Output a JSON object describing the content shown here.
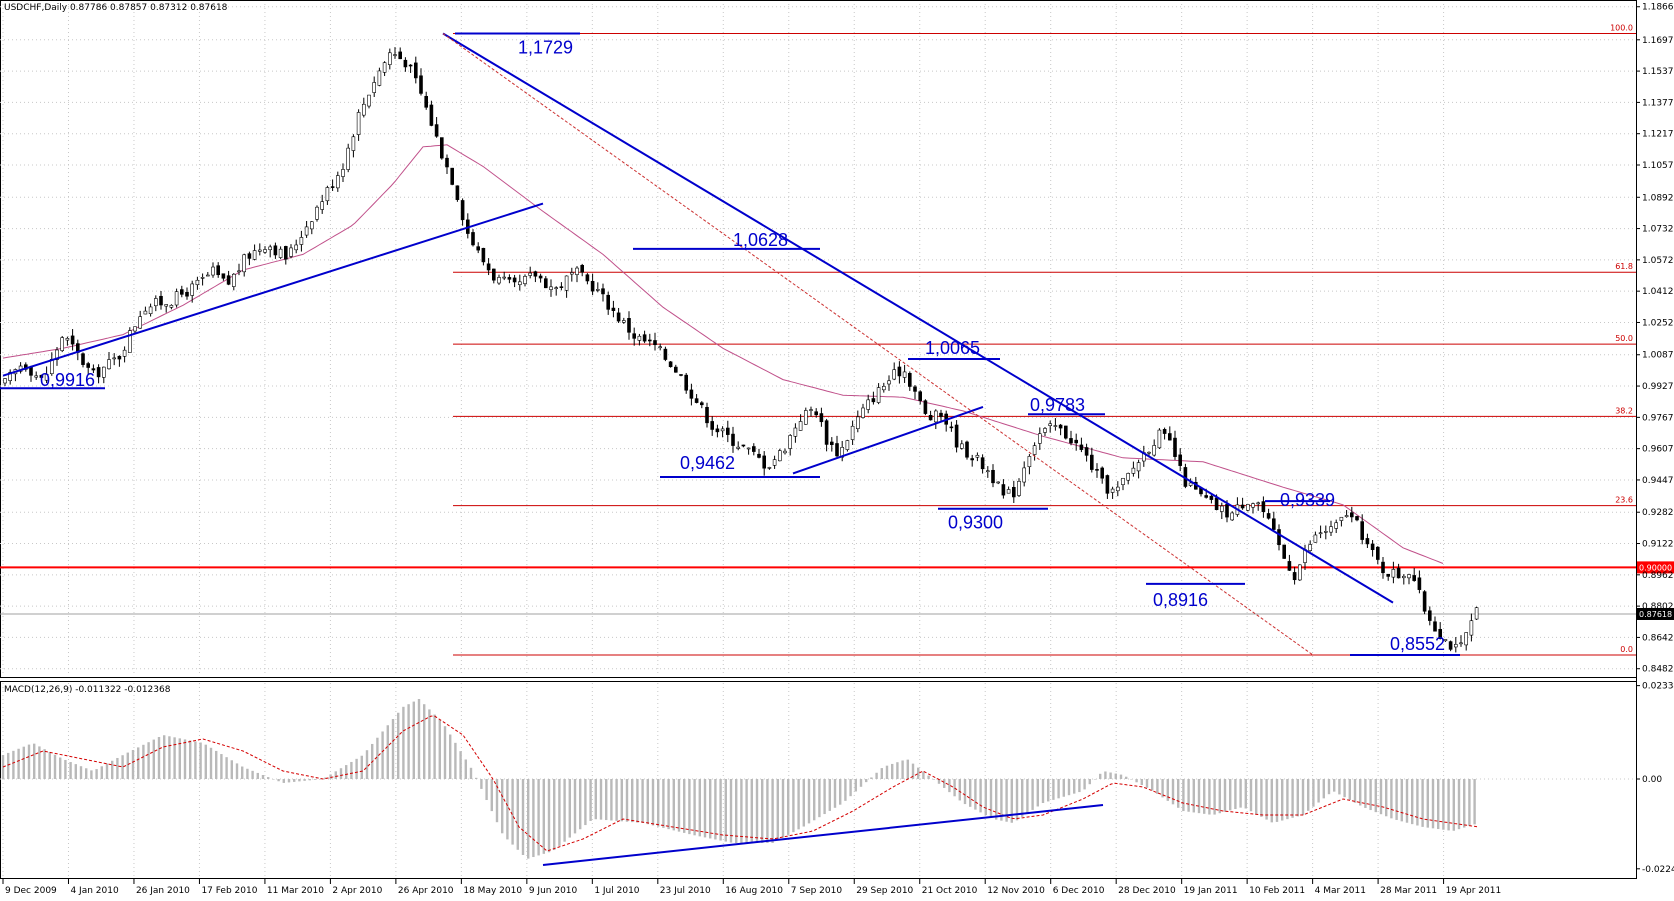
{
  "chart_data": [
    {
      "type": "candlestick",
      "symbol_header": "USDCHF,Daily  0.87786 0.87857 0.87312 0.87618",
      "yaxis_ticks": [
        "1.18660",
        "1.16970",
        "1.15370",
        "1.13770",
        "1.12170",
        "1.10570",
        "1.08920",
        "1.07320",
        "1.05720",
        "1.04120",
        "1.02520",
        "1.00870",
        "0.99270",
        "0.97670",
        "0.96070",
        "0.94470",
        "0.92820",
        "0.91220",
        "0.89620",
        "0.88020",
        "0.86420",
        "0.84820"
      ],
      "ylim": [
        0.8455,
        1.188
      ],
      "xaxis_ticks": [
        "9 Dec 2009",
        "4 Jan 2010",
        "26 Jan 2010",
        "17 Feb 2010",
        "11 Mar 2010",
        "2 Apr 2010",
        "26 Apr 2010",
        "18 May 2010",
        "9 Jun 2010",
        "1 Jul 2010",
        "23 Jul 2010",
        "16 Aug 2010",
        "7 Sep 2010",
        "29 Sep 2010",
        "21 Oct 2010",
        "12 Nov 2010",
        "6 Dec 2010",
        "28 Dec 2010",
        "19 Jan 2011",
        "10 Feb 2011",
        "4 Mar 2011",
        "28 Mar 2011",
        "19 Apr 2011"
      ],
      "current_price": {
        "label": "0.87618",
        "value": 0.87618
      },
      "price_path": [
        [
          0,
          0.993
        ],
        [
          10,
          1.005
        ],
        [
          20,
          0.995
        ],
        [
          30,
          1.019
        ],
        [
          45,
          0.998
        ],
        [
          58,
          1.008
        ],
        [
          70,
          1.033
        ],
        [
          85,
          1.037
        ],
        [
          95,
          1.043
        ],
        [
          105,
          1.051
        ],
        [
          112,
          1.044
        ],
        [
          122,
          1.059
        ],
        [
          132,
          1.066
        ],
        [
          142,
          1.058
        ],
        [
          150,
          1.072
        ],
        [
          160,
          1.089
        ],
        [
          170,
          1.106
        ],
        [
          178,
          1.132
        ],
        [
          186,
          1.15
        ],
        [
          194,
          1.164
        ],
        [
          202,
          1.158
        ],
        [
          208,
          1.145
        ],
        [
          214,
          1.128
        ],
        [
          220,
          1.11
        ],
        [
          226,
          1.095
        ],
        [
          232,
          1.072
        ],
        [
          238,
          1.06
        ],
        [
          246,
          1.048
        ],
        [
          256,
          1.043
        ],
        [
          266,
          1.05
        ],
        [
          276,
          1.042
        ],
        [
          286,
          1.051
        ],
        [
          296,
          1.043
        ],
        [
          306,
          1.03
        ],
        [
          316,
          1.018
        ],
        [
          326,
          1.013
        ],
        [
          336,
          1.002
        ],
        [
          345,
          0.988
        ],
        [
          355,
          0.972
        ],
        [
          365,
          0.965
        ],
        [
          375,
          0.958
        ],
        [
          382,
          0.952
        ],
        [
          390,
          0.96
        ],
        [
          398,
          0.976
        ],
        [
          406,
          0.982
        ],
        [
          412,
          0.965
        ],
        [
          418,
          0.958
        ],
        [
          426,
          0.974
        ],
        [
          434,
          0.986
        ],
        [
          442,
          0.995
        ],
        [
          450,
          1.002
        ],
        [
          456,
          0.99
        ],
        [
          462,
          0.976
        ],
        [
          470,
          0.978
        ],
        [
          478,
          0.962
        ],
        [
          486,
          0.956
        ],
        [
          494,
          0.948
        ],
        [
          500,
          0.936
        ],
        [
          506,
          0.939
        ],
        [
          512,
          0.957
        ],
        [
          518,
          0.968
        ],
        [
          526,
          0.972
        ],
        [
          534,
          0.966
        ],
        [
          542,
          0.956
        ],
        [
          550,
          0.942
        ],
        [
          556,
          0.938
        ],
        [
          562,
          0.946
        ],
        [
          570,
          0.958
        ],
        [
          578,
          0.968
        ],
        [
          584,
          0.963
        ],
        [
          590,
          0.945
        ],
        [
          598,
          0.937
        ],
        [
          606,
          0.931
        ],
        [
          614,
          0.927
        ],
        [
          622,
          0.935
        ],
        [
          628,
          0.933
        ],
        [
          634,
          0.92
        ],
        [
          640,
          0.906
        ],
        [
          646,
          0.896
        ],
        [
          652,
          0.91
        ],
        [
          658,
          0.918
        ],
        [
          666,
          0.92
        ],
        [
          672,
          0.928
        ],
        [
          678,
          0.92
        ],
        [
          684,
          0.908
        ],
        [
          690,
          0.899
        ],
        [
          698,
          0.896
        ],
        [
          704,
          0.899
        ],
        [
          710,
          0.88
        ],
        [
          716,
          0.87
        ],
        [
          722,
          0.862
        ],
        [
          728,
          0.857
        ],
        [
          732,
          0.866
        ],
        [
          736,
          0.877
        ],
        [
          738,
          0.8762
        ]
      ],
      "moving_average_path": [
        [
          0,
          1.007
        ],
        [
          30,
          1.012
        ],
        [
          60,
          1.019
        ],
        [
          90,
          1.034
        ],
        [
          120,
          1.052
        ],
        [
          150,
          1.06
        ],
        [
          175,
          1.075
        ],
        [
          195,
          1.096
        ],
        [
          210,
          1.115
        ],
        [
          222,
          1.116
        ],
        [
          240,
          1.105
        ],
        [
          270,
          1.082
        ],
        [
          300,
          1.06
        ],
        [
          330,
          1.033
        ],
        [
          360,
          1.012
        ],
        [
          390,
          0.996
        ],
        [
          420,
          0.988
        ],
        [
          450,
          0.987
        ],
        [
          480,
          0.98
        ],
        [
          520,
          0.967
        ],
        [
          560,
          0.956
        ],
        [
          600,
          0.954
        ],
        [
          640,
          0.941
        ],
        [
          670,
          0.932
        ],
        [
          700,
          0.91
        ],
        [
          720,
          0.902
        ]
      ],
      "fibonacci_levels": [
        {
          "label": "100.0",
          "value": 1.1729
        },
        {
          "label": "61.8",
          "value": 1.0509
        },
        {
          "label": "50.0",
          "value": 1.0141
        },
        {
          "label": "38.2",
          "value": 0.9772
        },
        {
          "label": "23.6",
          "value": 0.9316
        },
        {
          "label": "0.0",
          "value": 0.8552
        }
      ],
      "fib_color": "#cc0000",
      "key_level": {
        "label": "0.90000",
        "value": 0.9,
        "color": "#ff0000"
      },
      "annotations": [
        {
          "label": "1,1729",
          "value": 1.1729
        },
        {
          "label": "1,0628",
          "value": 1.0628
        },
        {
          "label": "1,0065",
          "value": 1.0065
        },
        {
          "label": "0,9916",
          "value": 0.9916
        },
        {
          "label": "0,9783",
          "value": 0.9783
        },
        {
          "label": "0,9462",
          "value": 0.9462
        },
        {
          "label": "0,9300",
          "value": 0.93
        },
        {
          "label": "0,9339",
          "value": 0.9339
        },
        {
          "label": "0,8916",
          "value": 0.8916
        },
        {
          "label": "0,8552",
          "value": 0.8552
        }
      ],
      "trendlines": [
        {
          "name": "downtrend",
          "from": [
            220,
            1.1729
          ],
          "to": [
            695,
            0.882
          ]
        },
        {
          "name": "uptrend-2010",
          "from": [
            0,
            0.998
          ],
          "to": [
            270,
            1.086
          ]
        },
        {
          "name": "uptrend-autumn",
          "from": [
            395,
            0.948
          ],
          "to": [
            490,
            0.982
          ]
        }
      ],
      "channel_line": {
        "from": [
          220,
          1.1729
        ],
        "to": [
          655,
          0.8552
        ]
      },
      "line_color": "#0000cc",
      "ma_color": "#c0508a"
    },
    {
      "type": "histogram",
      "title": "MACD(12,26,9) -0.011322 -0.012368",
      "yaxis_ticks": [
        "0.023345",
        "0.00",
        "-0.02245"
      ],
      "ylim": [
        -0.0245,
        0.024
      ],
      "bar_color": "#b9b9b9",
      "signal_color": "#d40000",
      "macd_path": [
        [
          0,
          0.006
        ],
        [
          15,
          0.009
        ],
        [
          30,
          0.005
        ],
        [
          45,
          0.002
        ],
        [
          60,
          0.006
        ],
        [
          80,
          0.011
        ],
        [
          100,
          0.009
        ],
        [
          120,
          0.003
        ],
        [
          140,
          -0.001
        ],
        [
          160,
          0.0
        ],
        [
          180,
          0.006
        ],
        [
          200,
          0.018
        ],
        [
          208,
          0.02
        ],
        [
          220,
          0.014
        ],
        [
          235,
          0.002
        ],
        [
          250,
          -0.014
        ],
        [
          262,
          -0.02
        ],
        [
          275,
          -0.018
        ],
        [
          295,
          -0.01
        ],
        [
          320,
          -0.011
        ],
        [
          345,
          -0.014
        ],
        [
          365,
          -0.016
        ],
        [
          385,
          -0.016
        ],
        [
          400,
          -0.012
        ],
        [
          420,
          -0.006
        ],
        [
          440,
          0.003
        ],
        [
          452,
          0.005
        ],
        [
          465,
          0.0
        ],
        [
          480,
          -0.006
        ],
        [
          495,
          -0.01
        ],
        [
          505,
          -0.011
        ],
        [
          520,
          -0.006
        ],
        [
          540,
          -0.003
        ],
        [
          550,
          0.002
        ],
        [
          560,
          0.001
        ],
        [
          575,
          -0.003
        ],
        [
          590,
          -0.008
        ],
        [
          605,
          -0.009
        ],
        [
          620,
          -0.007
        ],
        [
          635,
          -0.011
        ],
        [
          650,
          -0.009
        ],
        [
          665,
          -0.003
        ],
        [
          680,
          -0.007
        ],
        [
          695,
          -0.01
        ],
        [
          710,
          -0.012
        ],
        [
          725,
          -0.013
        ],
        [
          738,
          -0.011
        ]
      ],
      "signal_path": [
        [
          0,
          0.003
        ],
        [
          20,
          0.007
        ],
        [
          40,
          0.005
        ],
        [
          60,
          0.003
        ],
        [
          80,
          0.008
        ],
        [
          100,
          0.01
        ],
        [
          120,
          0.007
        ],
        [
          140,
          0.002
        ],
        [
          160,
          0.0
        ],
        [
          180,
          0.002
        ],
        [
          200,
          0.012
        ],
        [
          215,
          0.016
        ],
        [
          230,
          0.011
        ],
        [
          245,
          0.0
        ],
        [
          258,
          -0.012
        ],
        [
          272,
          -0.018
        ],
        [
          290,
          -0.015
        ],
        [
          310,
          -0.01
        ],
        [
          335,
          -0.012
        ],
        [
          360,
          -0.014
        ],
        [
          385,
          -0.015
        ],
        [
          405,
          -0.013
        ],
        [
          425,
          -0.008
        ],
        [
          445,
          -0.002
        ],
        [
          460,
          0.002
        ],
        [
          475,
          -0.002
        ],
        [
          490,
          -0.007
        ],
        [
          505,
          -0.01
        ],
        [
          520,
          -0.009
        ],
        [
          540,
          -0.005
        ],
        [
          555,
          -0.001
        ],
        [
          570,
          -0.002
        ],
        [
          590,
          -0.006
        ],
        [
          610,
          -0.008
        ],
        [
          630,
          -0.009
        ],
        [
          650,
          -0.009
        ],
        [
          670,
          -0.005
        ],
        [
          690,
          -0.007
        ],
        [
          710,
          -0.01
        ],
        [
          738,
          -0.012
        ]
      ],
      "divergence_line": {
        "from": [
          270,
          -0.0215
        ],
        "to": [
          550,
          -0.0065
        ]
      }
    }
  ]
}
